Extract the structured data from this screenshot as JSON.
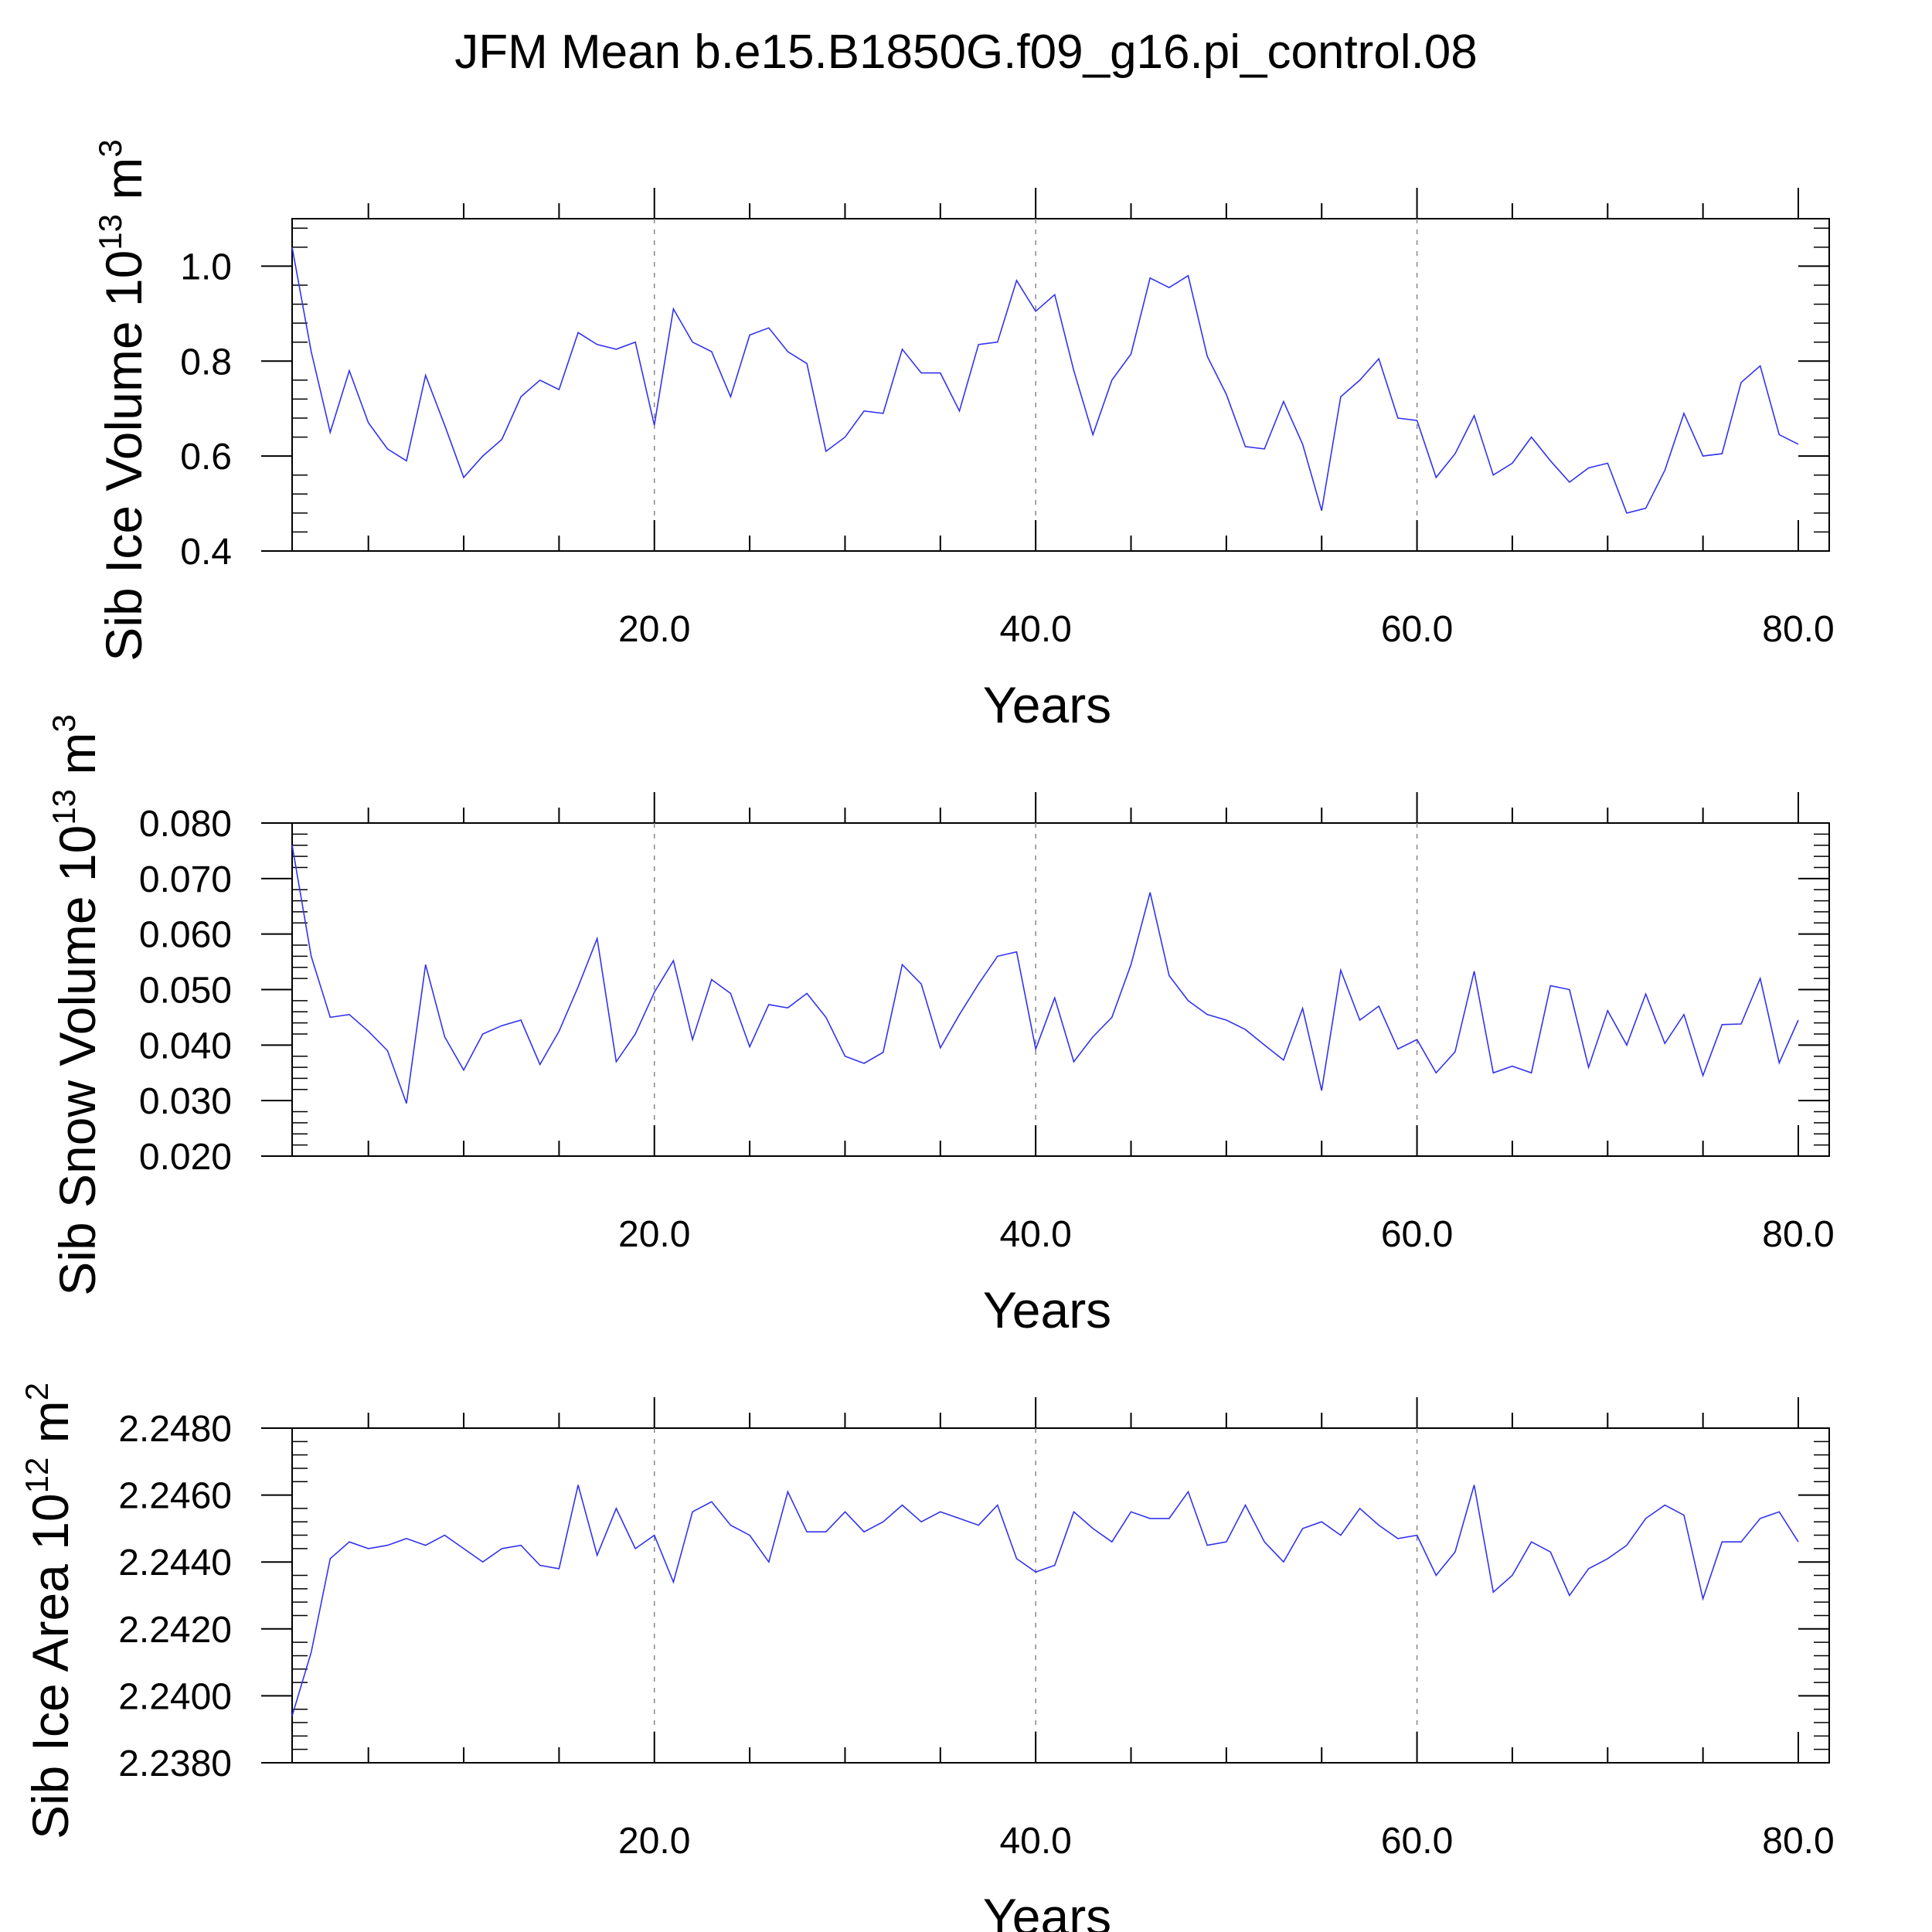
{
  "figure": {
    "title": "JFM Mean b.e15.B1850G.f09_g16.pi_control.08"
  },
  "style": {
    "line_color": "#3333ee",
    "axis_color": "#000000",
    "grid_color": "#888888"
  },
  "chart_data": [
    {
      "type": "line",
      "ylabel": "Sib Ice Volume",
      "yunit_base": "10",
      "yunit_exp": "13",
      "yunit_suffix": "m",
      "yunit_suffix_exp": "3",
      "xlabel": "Years",
      "xlim": [
        1,
        80
      ],
      "ylim": [
        0.4,
        1.1
      ],
      "yticks": [
        0.4,
        0.6,
        0.8,
        1.0
      ],
      "ytick_labels": [
        "0.4",
        "0.6",
        "0.8",
        "1.0"
      ],
      "xticks": [
        20,
        40,
        60,
        80
      ],
      "xtick_labels": [
        "20.0",
        "40.0",
        "60.0",
        "80.0"
      ],
      "grid_x": [
        20,
        40,
        60
      ],
      "series": [
        {
          "values": [
            1.04,
            0.82,
            0.65,
            0.78,
            0.67,
            0.615,
            0.59,
            0.77,
            0.665,
            0.555,
            0.6,
            0.635,
            0.725,
            0.76,
            0.74,
            0.86,
            0.835,
            0.825,
            0.84,
            0.665,
            0.91,
            0.84,
            0.82,
            0.725,
            0.855,
            0.87,
            0.82,
            0.795,
            0.61,
            0.64,
            0.695,
            0.69,
            0.825,
            0.775,
            0.775,
            0.695,
            0.835,
            0.84,
            0.97,
            0.905,
            0.94,
            0.78,
            0.645,
            0.76,
            0.815,
            0.975,
            0.955,
            0.98,
            0.81,
            0.73,
            0.62,
            0.615,
            0.715,
            0.625,
            0.485,
            0.725,
            0.76,
            0.805,
            0.68,
            0.675,
            0.555,
            0.605,
            0.685,
            0.56,
            0.585,
            0.64,
            0.59,
            0.545,
            0.575,
            0.585,
            0.48,
            0.49,
            0.57,
            0.69,
            0.6,
            0.605,
            0.755,
            0.79,
            0.645,
            0.625
          ]
        }
      ]
    },
    {
      "type": "line",
      "ylabel": "Sib Snow Volume",
      "yunit_base": "10",
      "yunit_exp": "13",
      "yunit_suffix": "m",
      "yunit_suffix_exp": "3",
      "xlabel": "Years",
      "xlim": [
        1,
        80
      ],
      "ylim": [
        0.02,
        0.08
      ],
      "yticks": [
        0.02,
        0.03,
        0.04,
        0.05,
        0.06,
        0.07,
        0.08
      ],
      "ytick_labels": [
        "0.020",
        "0.030",
        "0.040",
        "0.050",
        "0.060",
        "0.070",
        "0.080"
      ],
      "xticks": [
        20,
        40,
        60,
        80
      ],
      "xtick_labels": [
        "20.0",
        "40.0",
        "60.0",
        "80.0"
      ],
      "grid_x": [
        20,
        40,
        60
      ],
      "series": [
        {
          "values": [
            0.076,
            0.056,
            0.045,
            0.0455,
            0.0425,
            0.039,
            0.0295,
            0.0545,
            0.0415,
            0.0355,
            0.042,
            0.0435,
            0.0445,
            0.0365,
            0.0425,
            0.0505,
            0.0592,
            0.037,
            0.042,
            0.0495,
            0.0552,
            0.041,
            0.0518,
            0.0493,
            0.0397,
            0.0473,
            0.0467,
            0.0493,
            0.045,
            0.038,
            0.0367,
            0.0387,
            0.0545,
            0.051,
            0.0395,
            0.0455,
            0.051,
            0.056,
            0.0568,
            0.0393,
            0.0485,
            0.037,
            0.0415,
            0.045,
            0.0545,
            0.0675,
            0.0525,
            0.048,
            0.0455,
            0.0445,
            0.0428,
            0.04,
            0.0373,
            0.0466,
            0.0318,
            0.0535,
            0.0445,
            0.047,
            0.0393,
            0.041,
            0.035,
            0.0388,
            0.0533,
            0.035,
            0.0362,
            0.035,
            0.0507,
            0.05,
            0.036,
            0.0462,
            0.04,
            0.0492,
            0.0403,
            0.0455,
            0.0345,
            0.0437,
            0.0438,
            0.052,
            0.0368,
            0.0445
          ]
        }
      ]
    },
    {
      "type": "line",
      "ylabel": "Sib Ice Area",
      "yunit_base": "10",
      "yunit_exp": "12",
      "yunit_suffix": "m",
      "yunit_suffix_exp": "2",
      "xlabel": "Years",
      "xlim": [
        1,
        80
      ],
      "ylim": [
        2.238,
        2.248
      ],
      "yticks": [
        2.238,
        2.24,
        2.242,
        2.244,
        2.246,
        2.248
      ],
      "ytick_labels": [
        "2.2380",
        "2.2400",
        "2.2420",
        "2.2440",
        "2.2460",
        "2.2480"
      ],
      "xticks": [
        20,
        40,
        60,
        80
      ],
      "xtick_labels": [
        "20.0",
        "40.0",
        "60.0",
        "80.0"
      ],
      "grid_x": [
        20,
        40,
        60
      ],
      "series": [
        {
          "values": [
            2.2394,
            2.2413,
            2.2441,
            2.2446,
            2.2444,
            2.2445,
            2.2447,
            2.2445,
            2.2448,
            2.2444,
            2.244,
            2.2444,
            2.2445,
            2.2439,
            2.2438,
            2.2463,
            2.2442,
            2.2456,
            2.2444,
            2.2448,
            2.2434,
            2.2455,
            2.2458,
            2.2451,
            2.2448,
            2.244,
            2.2461,
            2.2449,
            2.2449,
            2.2455,
            2.2449,
            2.2452,
            2.2457,
            2.2452,
            2.2455,
            2.2453,
            2.2451,
            2.2457,
            2.2441,
            2.2437,
            2.2439,
            2.2455,
            2.245,
            2.2446,
            2.2455,
            2.2453,
            2.2453,
            2.2461,
            2.2445,
            2.2446,
            2.2457,
            2.2446,
            2.244,
            2.245,
            2.2452,
            2.2448,
            2.2456,
            2.2451,
            2.2447,
            2.2448,
            2.2436,
            2.2443,
            2.2463,
            2.2431,
            2.2436,
            2.2446,
            2.2443,
            2.243,
            2.2438,
            2.2441,
            2.2445,
            2.2453,
            2.2457,
            2.2454,
            2.2429,
            2.2446,
            2.2446,
            2.2453,
            2.2455,
            2.2446
          ]
        }
      ]
    }
  ]
}
